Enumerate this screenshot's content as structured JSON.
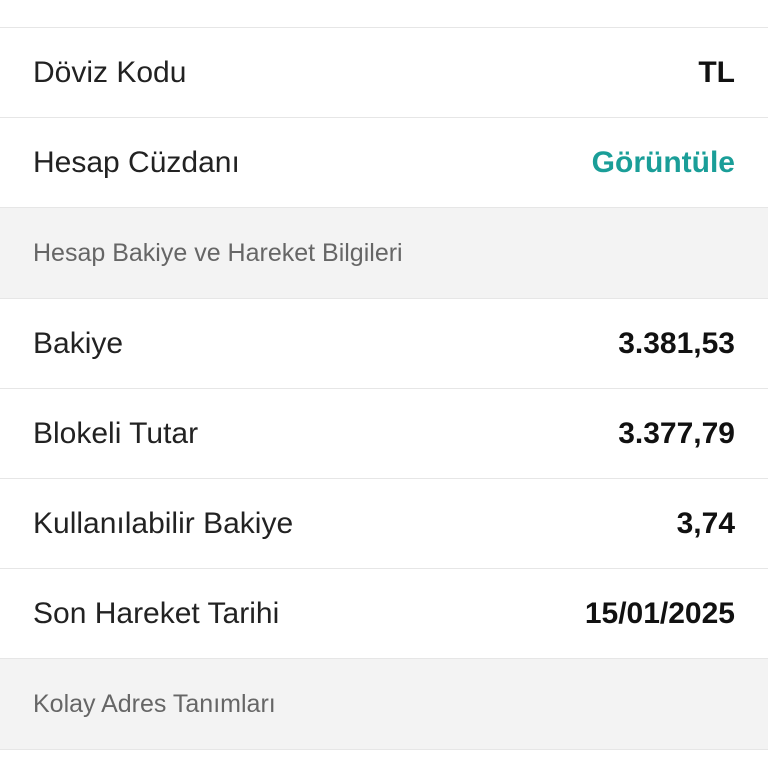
{
  "rows_top": [
    {
      "label": "",
      "value": ""
    },
    {
      "label": "Döviz Kodu",
      "value": "TL"
    },
    {
      "label": "Hesap Cüzdanı",
      "value": "Görüntüle",
      "link": true
    }
  ],
  "section1": {
    "title": "Hesap Bakiye ve Hareket Bilgileri"
  },
  "rows_balance": [
    {
      "label": "Bakiye",
      "value": "3.381,53"
    },
    {
      "label": "Blokeli Tutar",
      "value": "3.377,79"
    },
    {
      "label": "Kullanılabilir Bakiye",
      "value": "3,74"
    },
    {
      "label": "Son Hareket Tarihi",
      "value": "15/01/2025"
    }
  ],
  "section2": {
    "title": "Kolay Adres Tanımları"
  },
  "colors": {
    "accent": "#1a9e98"
  }
}
